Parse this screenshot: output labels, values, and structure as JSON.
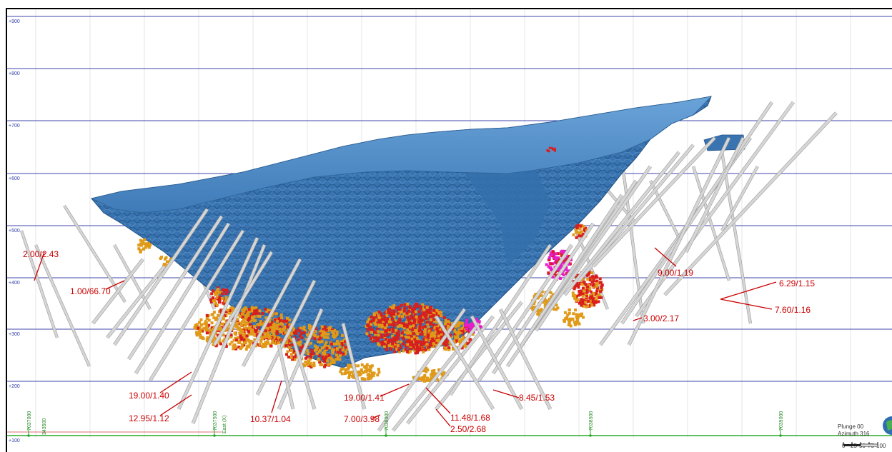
{
  "elevation_levels": [
    "+900",
    "+800",
    "+700",
    "+600",
    "+500",
    "+400",
    "+300",
    "+200",
    "+100"
  ],
  "northing_labels": [
    "7037000",
    "7037500",
    "7038000",
    "7038500",
    "7039000"
  ],
  "easting_label": "343500",
  "east_axis": "East (X)",
  "intercepts": [
    {
      "id": "a",
      "text": "2.00/2.43"
    },
    {
      "id": "b",
      "text": "1.00/66.70"
    },
    {
      "id": "c",
      "text": "19.00/1.40"
    },
    {
      "id": "d",
      "text": "12.95/1.12"
    },
    {
      "id": "e",
      "text": "10.37/1.04"
    },
    {
      "id": "f",
      "text": "19.00/1.41"
    },
    {
      "id": "g",
      "text": "7.00/3.98"
    },
    {
      "id": "h",
      "text": "11.48/1.68"
    },
    {
      "id": "i",
      "text": "2.50/2.68"
    },
    {
      "id": "j",
      "text": "8.45/1.53"
    },
    {
      "id": "k",
      "text": "9.00/1.19"
    },
    {
      "id": "l",
      "text": "3.00/2.17"
    },
    {
      "id": "m",
      "text": "6.29/1.15"
    },
    {
      "id": "n",
      "text": "7.60/1.16"
    }
  ],
  "view": {
    "plunge": "Plunge 00",
    "azimuth": "Azimuth 316"
  },
  "scale": {
    "ticks": [
      "0",
      "25",
      "50",
      "75",
      "100"
    ]
  },
  "colors": {
    "pit": "#3f79b5",
    "pit_dark": "#2b5f96",
    "grid": "#3c46a8",
    "mineral_orange": "#e09a18",
    "mineral_red": "#d91e1e",
    "mineral_magenta": "#e81cc8",
    "drill": "#b8b8b8",
    "label": "#cc0000",
    "north_line": "#2aa82a"
  }
}
